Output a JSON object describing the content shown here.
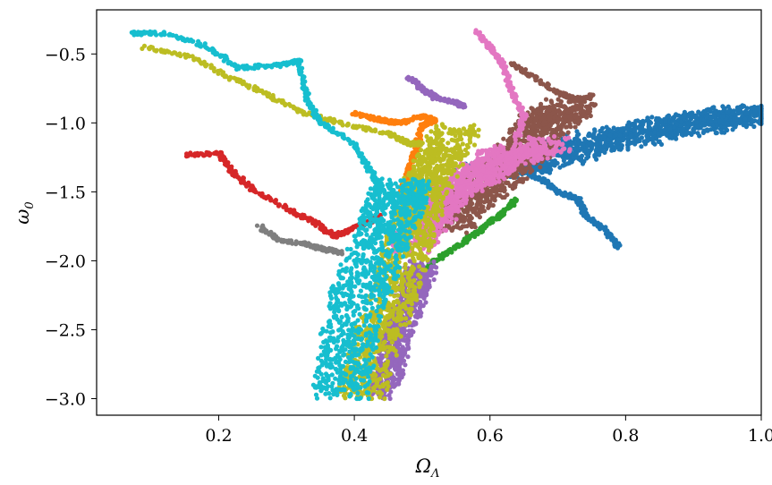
{
  "chart_data": {
    "type": "scatter",
    "title": "",
    "xlabel": "Ω",
    "xlabel_sub": "Λ",
    "ylabel": "ω",
    "ylabel_sub": "0",
    "xlim": [
      0.02,
      1.0
    ],
    "ylim": [
      -3.12,
      -0.18
    ],
    "xticks": [
      0.2,
      0.4,
      0.6,
      0.8,
      1.0
    ],
    "xtick_labels": [
      "0.2",
      "0.4",
      "0.6",
      "0.8",
      "1.0"
    ],
    "yticks": [
      -0.5,
      -1.0,
      -1.5,
      -2.0,
      -2.5,
      -3.0
    ],
    "ytick_labels": [
      "−0.5",
      "−1.0",
      "−1.5",
      "−2.0",
      "−2.5",
      "−3.0"
    ],
    "grid": false,
    "legend": "none",
    "series": [
      {
        "color": "#1f77b4",
        "trail": [
          [
            0.79,
            -1.9
          ],
          [
            0.77,
            -1.78
          ],
          [
            0.74,
            -1.67
          ],
          [
            0.73,
            -1.55
          ],
          [
            0.7,
            -1.5
          ],
          [
            0.68,
            -1.42
          ],
          [
            0.65,
            -1.35
          ],
          [
            0.64,
            -1.28
          ]
        ],
        "cloud": [
          [
            0.6,
            -1.35
          ],
          [
            0.66,
            -1.28
          ],
          [
            0.72,
            -1.18
          ],
          [
            0.8,
            -1.1
          ],
          [
            0.88,
            -1.02
          ],
          [
            0.94,
            -0.98
          ],
          [
            0.98,
            -0.92
          ]
        ],
        "cloud_width": 0.11
      },
      {
        "color": "#ff7f0e",
        "trail": [
          [
            0.4,
            -0.93
          ],
          [
            0.43,
            -0.97
          ],
          [
            0.45,
            -0.99
          ],
          [
            0.47,
            -1.0
          ],
          [
            0.5,
            -0.95
          ],
          [
            0.52,
            -0.98
          ],
          [
            0.5,
            -1.02
          ],
          [
            0.49,
            -1.2
          ],
          [
            0.48,
            -1.35
          ],
          [
            0.47,
            -1.5
          ]
        ],
        "cloud": [],
        "cloud_width": 0.0
      },
      {
        "color": "#2ca02c",
        "trail": [
          [
            0.64,
            -1.55
          ],
          [
            0.62,
            -1.65
          ],
          [
            0.6,
            -1.72
          ],
          [
            0.58,
            -1.8
          ],
          [
            0.55,
            -1.9
          ],
          [
            0.52,
            -2.0
          ],
          [
            0.5,
            -2.1
          ]
        ],
        "cloud": [],
        "cloud_width": 0.0
      },
      {
        "color": "#d62728",
        "trail": [
          [
            0.15,
            -1.23
          ],
          [
            0.2,
            -1.22
          ],
          [
            0.22,
            -1.35
          ],
          [
            0.25,
            -1.48
          ],
          [
            0.3,
            -1.62
          ],
          [
            0.34,
            -1.72
          ],
          [
            0.37,
            -1.82
          ],
          [
            0.39,
            -1.78
          ],
          [
            0.42,
            -1.72
          ],
          [
            0.44,
            -1.68
          ]
        ],
        "cloud": [],
        "cloud_width": 0.0
      },
      {
        "color": "#9467bd",
        "trail": [
          [
            0.48,
            -0.67
          ],
          [
            0.5,
            -0.75
          ],
          [
            0.52,
            -0.82
          ],
          [
            0.55,
            -0.85
          ],
          [
            0.56,
            -0.88
          ]
        ],
        "cloud": [
          [
            0.44,
            -2.95
          ],
          [
            0.46,
            -2.6
          ],
          [
            0.48,
            -2.3
          ],
          [
            0.5,
            -2.05
          ]
        ],
        "cloud_width": 0.045
      },
      {
        "color": "#8c564b",
        "trail": [
          [
            0.63,
            -0.57
          ],
          [
            0.66,
            -0.65
          ],
          [
            0.7,
            -0.78
          ],
          [
            0.73,
            -0.83
          ],
          [
            0.75,
            -0.8
          ]
        ],
        "cloud": [
          [
            0.53,
            -1.75
          ],
          [
            0.57,
            -1.55
          ],
          [
            0.61,
            -1.38
          ],
          [
            0.65,
            -1.2
          ],
          [
            0.68,
            -1.0
          ],
          [
            0.72,
            -0.88
          ]
        ],
        "cloud_width": 0.08
      },
      {
        "color": "#e377c2",
        "trail": [
          [
            0.58,
            -0.33
          ],
          [
            0.6,
            -0.45
          ],
          [
            0.62,
            -0.58
          ],
          [
            0.63,
            -0.75
          ],
          [
            0.65,
            -0.95
          ],
          [
            0.64,
            -1.1
          ]
        ],
        "cloud": [
          [
            0.48,
            -1.9
          ],
          [
            0.51,
            -1.68
          ],
          [
            0.54,
            -1.5
          ],
          [
            0.58,
            -1.38
          ],
          [
            0.62,
            -1.25
          ],
          [
            0.69,
            -1.15
          ]
        ],
        "cloud_width": 0.07
      },
      {
        "color": "#7f7f7f",
        "trail": [
          [
            0.26,
            -1.75
          ],
          [
            0.29,
            -1.85
          ],
          [
            0.33,
            -1.88
          ],
          [
            0.36,
            -1.92
          ],
          [
            0.38,
            -1.94
          ]
        ],
        "cloud": [],
        "cloud_width": 0.0
      },
      {
        "color": "#bcbd22",
        "trail": [
          [
            0.09,
            -0.45
          ],
          [
            0.16,
            -0.52
          ],
          [
            0.22,
            -0.68
          ],
          [
            0.27,
            -0.79
          ],
          [
            0.32,
            -0.92
          ],
          [
            0.38,
            -1.0
          ],
          [
            0.45,
            -1.08
          ],
          [
            0.48,
            -1.15
          ],
          [
            0.5,
            -1.15
          ]
        ],
        "cloud": [
          [
            0.41,
            -2.98
          ],
          [
            0.43,
            -2.6
          ],
          [
            0.46,
            -2.25
          ],
          [
            0.48,
            -1.85
          ],
          [
            0.5,
            -1.55
          ],
          [
            0.52,
            -1.3
          ],
          [
            0.55,
            -1.05
          ]
        ],
        "cloud_width": 0.07
      },
      {
        "color": "#17becf",
        "trail": [
          [
            0.07,
            -0.35
          ],
          [
            0.12,
            -0.35
          ],
          [
            0.18,
            -0.44
          ],
          [
            0.23,
            -0.6
          ],
          [
            0.29,
            -0.58
          ],
          [
            0.32,
            -0.55
          ],
          [
            0.33,
            -0.82
          ],
          [
            0.35,
            -1.0
          ],
          [
            0.4,
            -1.15
          ],
          [
            0.42,
            -1.32
          ],
          [
            0.44,
            -1.48
          ]
        ],
        "cloud": [
          [
            0.38,
            -2.98
          ],
          [
            0.39,
            -2.6
          ],
          [
            0.41,
            -2.2
          ],
          [
            0.44,
            -1.85
          ],
          [
            0.46,
            -1.6
          ],
          [
            0.47,
            -1.45
          ]
        ],
        "cloud_width": 0.085
      }
    ]
  }
}
